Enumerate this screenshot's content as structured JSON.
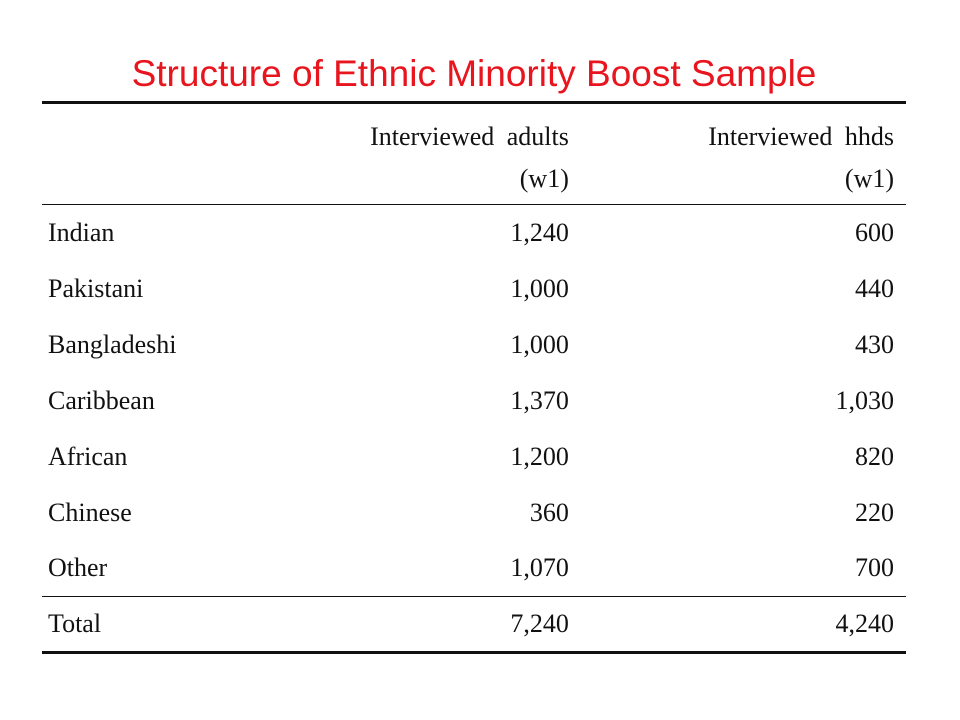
{
  "slide": {
    "title": "Structure of Ethnic Minority Boost Sample",
    "title_color": "#e8141e"
  },
  "table": {
    "headers": [
      {
        "line1": "",
        "line2": ""
      },
      {
        "line1": "Interviewed adults",
        "line2": "(w1)"
      },
      {
        "line1": "Interviewed hhds",
        "line2": "(w1)"
      }
    ],
    "rows": [
      {
        "group": "Indian",
        "adults": "1,240",
        "hhds": "600"
      },
      {
        "group": "Pakistani",
        "adults": "1,000",
        "hhds": "440"
      },
      {
        "group": "Bangladeshi",
        "adults": "1,000",
        "hhds": "430"
      },
      {
        "group": "Caribbean",
        "adults": "1,370",
        "hhds": "1,030"
      },
      {
        "group": "African",
        "adults": "1,200",
        "hhds": "820"
      },
      {
        "group": "Chinese",
        "adults": "360",
        "hhds": "220"
      },
      {
        "group": "Other",
        "adults": "1,070",
        "hhds": "700"
      }
    ],
    "total": {
      "group": "Total",
      "adults": "7,240",
      "hhds": "4,240"
    }
  }
}
